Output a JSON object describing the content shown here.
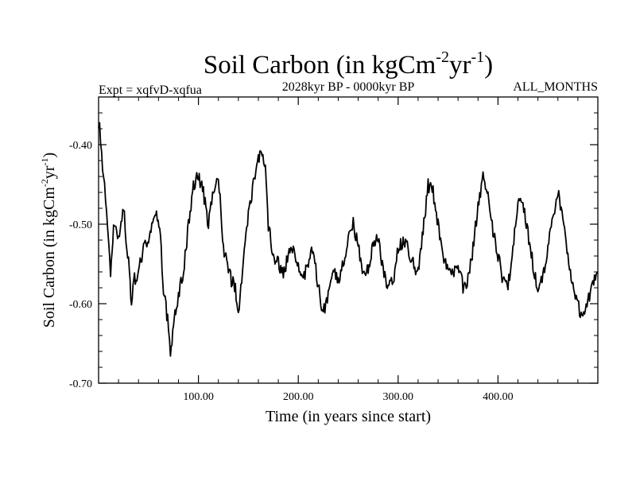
{
  "chart_data": {
    "type": "line",
    "title": {
      "base": "Soil Carbon (in kgCm",
      "sup1": "-2",
      "mid": "yr",
      "sup2": "-1",
      "end": ")"
    },
    "subtitle_left": "Expt = xqfvD-xqfua",
    "subtitle_center": "2028kyr BP - 0000kyr BP",
    "subtitle_right": "ALL_MONTHS",
    "xlabel": "Time (in years since start)",
    "ylabel": {
      "base": "Soil Carbon (in kgCm",
      "sup1": "-2",
      "mid": "yr",
      "sup2": "-1",
      "end": ")"
    },
    "xlim": [
      0,
      500
    ],
    "ylim": [
      -0.7,
      -0.34
    ],
    "x_ticks": [
      100,
      200,
      300,
      400
    ],
    "x_tick_labels": [
      "100.00",
      "200.00",
      "300.00",
      "400.00"
    ],
    "y_ticks": [
      -0.4,
      -0.5,
      -0.6,
      -0.7
    ],
    "y_tick_labels": [
      "-0.40",
      "-0.50",
      "-0.60",
      "-0.70"
    ],
    "series": [
      {
        "name": "Soil Carbon",
        "color": "#000000",
        "x": [
          0,
          2,
          4,
          6,
          8,
          10,
          12,
          15,
          18,
          20,
          25,
          30,
          33,
          36,
          40,
          45,
          50,
          55,
          58,
          62,
          65,
          70,
          72,
          75,
          78,
          80,
          85,
          90,
          95,
          100,
          105,
          110,
          115,
          120,
          125,
          130,
          133,
          137,
          140,
          145,
          150,
          155,
          160,
          163,
          167,
          170,
          175,
          180,
          185,
          190,
          195,
          200,
          205,
          210,
          215,
          220,
          225,
          230,
          235,
          240,
          245,
          250,
          255,
          260,
          265,
          270,
          273,
          276,
          280,
          285,
          290,
          295,
          300,
          305,
          310,
          315,
          320,
          325,
          330,
          335,
          340,
          345,
          350,
          355,
          360,
          365,
          370,
          375,
          380,
          385,
          390,
          395,
          400,
          405,
          410,
          415,
          420,
          425,
          430,
          435,
          440,
          445,
          450,
          455,
          460,
          465,
          470,
          475,
          480,
          485,
          490,
          495,
          500
        ],
        "y": [
          -0.37,
          -0.39,
          -0.43,
          -0.45,
          -0.48,
          -0.53,
          -0.56,
          -0.5,
          -0.51,
          -0.52,
          -0.48,
          -0.55,
          -0.6,
          -0.57,
          -0.56,
          -0.53,
          -0.52,
          -0.5,
          -0.48,
          -0.52,
          -0.58,
          -0.63,
          -0.66,
          -0.63,
          -0.6,
          -0.59,
          -0.56,
          -0.5,
          -0.45,
          -0.44,
          -0.46,
          -0.5,
          -0.46,
          -0.44,
          -0.53,
          -0.56,
          -0.57,
          -0.58,
          -0.61,
          -0.55,
          -0.49,
          -0.45,
          -0.42,
          -0.41,
          -0.43,
          -0.5,
          -0.54,
          -0.55,
          -0.56,
          -0.54,
          -0.53,
          -0.55,
          -0.57,
          -0.55,
          -0.53,
          -0.58,
          -0.61,
          -0.59,
          -0.56,
          -0.57,
          -0.55,
          -0.52,
          -0.5,
          -0.53,
          -0.56,
          -0.56,
          -0.54,
          -0.52,
          -0.52,
          -0.56,
          -0.58,
          -0.57,
          -0.53,
          -0.52,
          -0.53,
          -0.55,
          -0.56,
          -0.51,
          -0.45,
          -0.46,
          -0.5,
          -0.54,
          -0.56,
          -0.56,
          -0.55,
          -0.58,
          -0.57,
          -0.53,
          -0.48,
          -0.44,
          -0.46,
          -0.51,
          -0.54,
          -0.57,
          -0.58,
          -0.53,
          -0.47,
          -0.47,
          -0.51,
          -0.55,
          -0.58,
          -0.57,
          -0.53,
          -0.49,
          -0.46,
          -0.49,
          -0.54,
          -0.58,
          -0.6,
          -0.62,
          -0.6,
          -0.57,
          -0.56
        ]
      }
    ]
  }
}
